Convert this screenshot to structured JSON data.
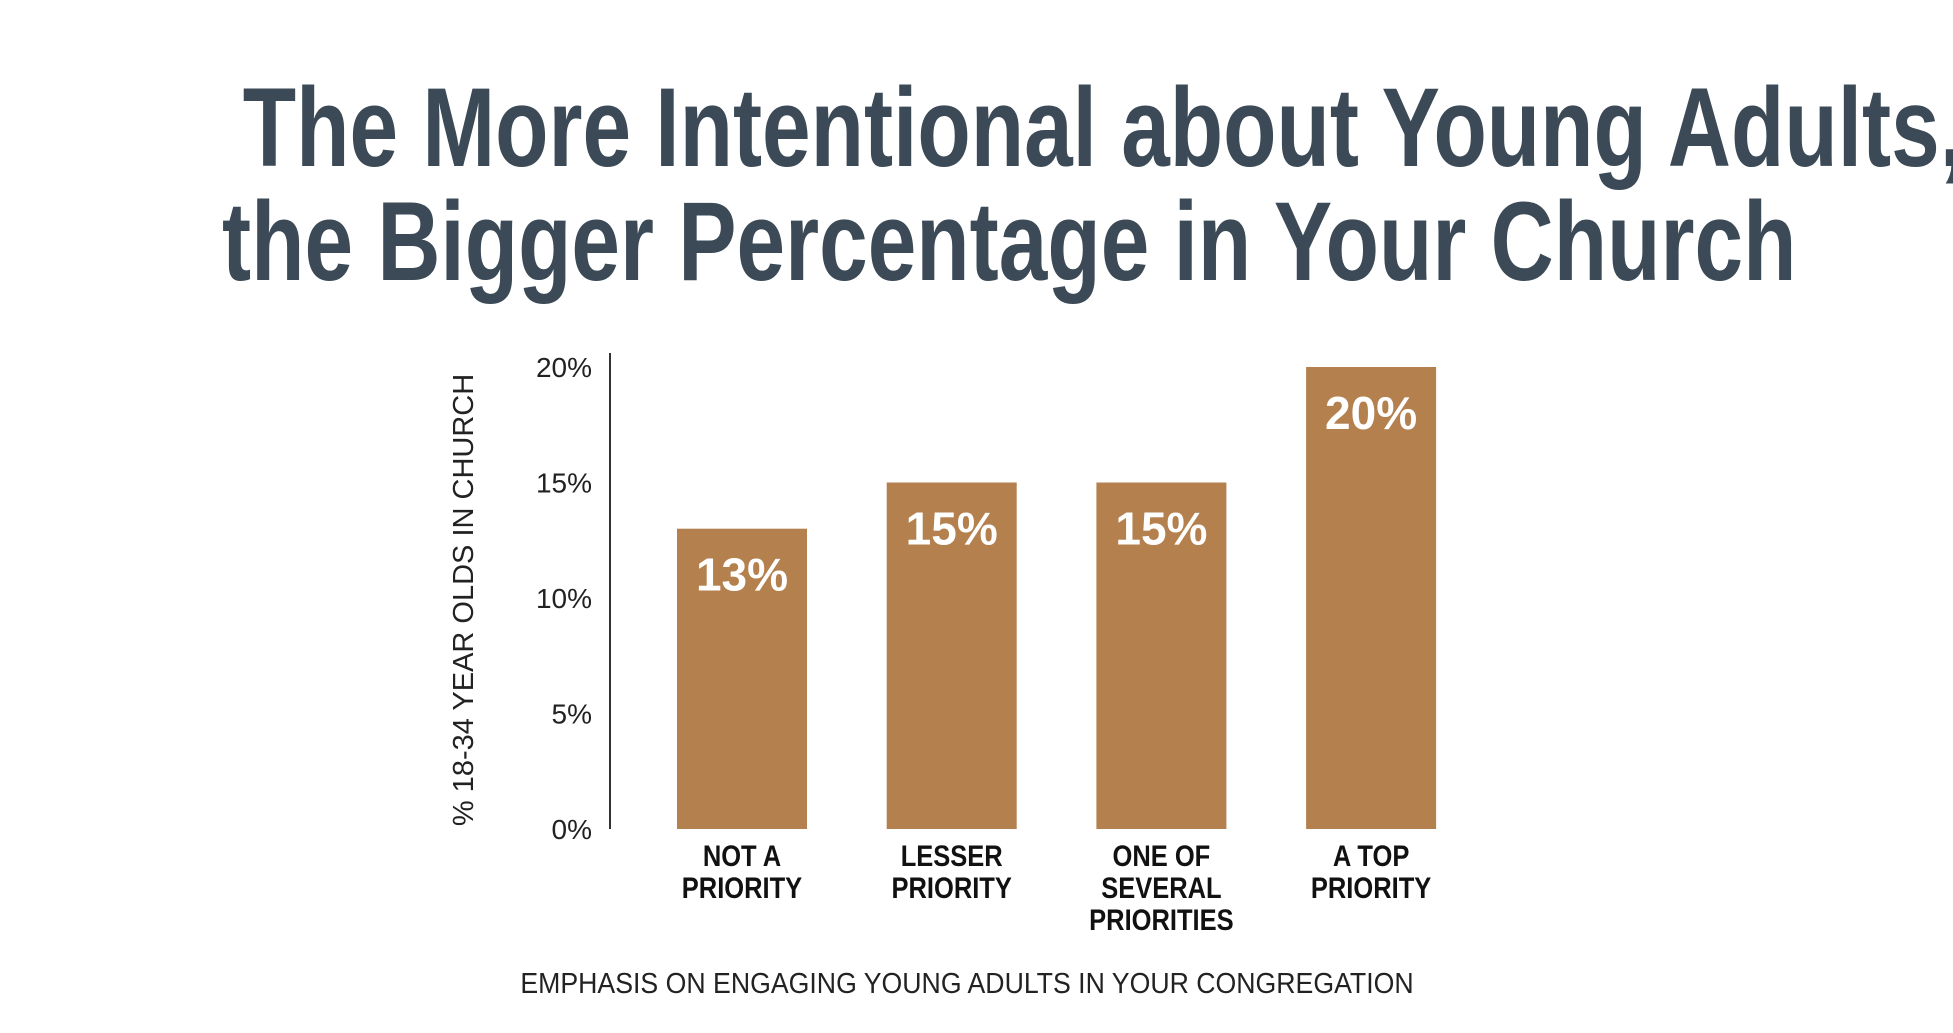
{
  "title": {
    "line1": "The More Intentional about Young Adults,",
    "line2": "the Bigger Percentage in Your Church"
  },
  "chart_data": {
    "type": "bar",
    "categories": [
      [
        "NOT A",
        "PRIORITY"
      ],
      [
        "LESSER",
        "PRIORITY"
      ],
      [
        "ONE OF",
        "SEVERAL",
        "PRIORITIES"
      ],
      [
        "A TOP",
        "PRIORITY"
      ]
    ],
    "values": [
      13,
      15,
      15,
      20
    ],
    "data_labels": [
      "13%",
      "15%",
      "15%",
      "20%"
    ],
    "ylabel": "% 18-34 YEAR OLDS IN CHURCH",
    "xlabel": "EMPHASIS ON ENGAGING YOUNG ADULTS IN YOUR CONGREGATION",
    "ylim": [
      0,
      20
    ],
    "yticks": [
      0,
      5,
      10,
      15,
      20
    ],
    "ytick_labels": [
      "0%",
      "5%",
      "10%",
      "15%",
      "20%"
    ],
    "grid": false,
    "bar_color": "#b3804e",
    "title_color": "#3b4a56"
  }
}
